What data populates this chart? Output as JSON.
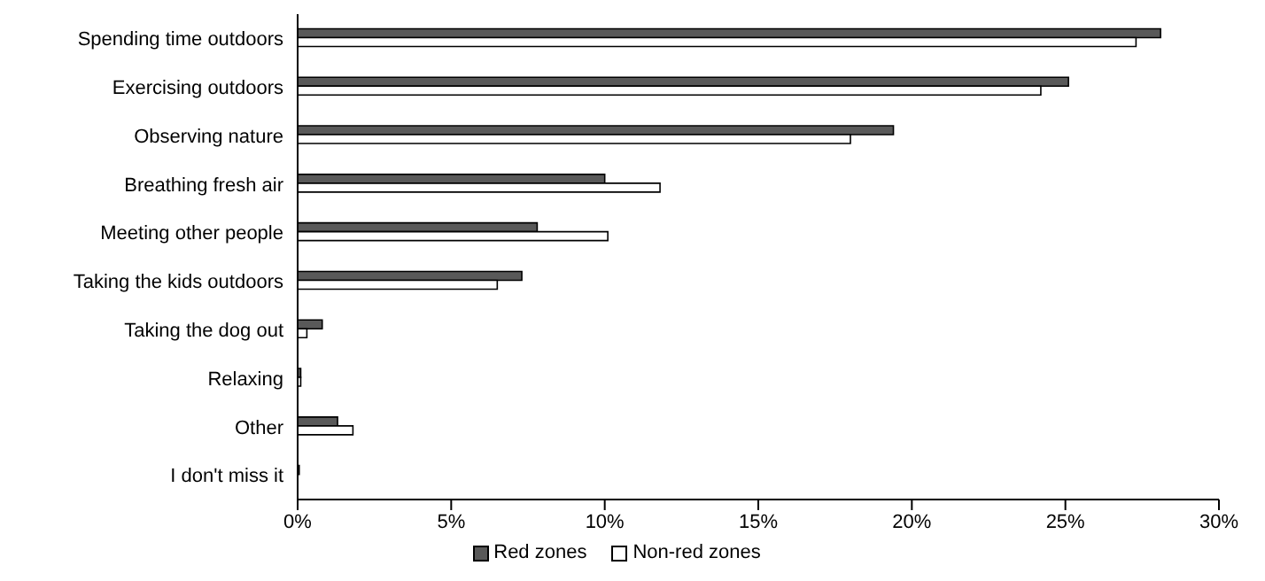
{
  "chart_data": {
    "type": "bar",
    "orientation": "horizontal",
    "categories": [
      "Spending time outdoors",
      "Exercising outdoors",
      "Observing nature",
      "Breathing fresh air",
      "Meeting other people",
      "Taking the kids outdoors",
      "Taking the dog out",
      "Relaxing",
      "Other",
      "I don't miss it"
    ],
    "series": [
      {
        "name": "Red zones",
        "color": "#595959",
        "values": [
          28.1,
          25.1,
          19.4,
          10.0,
          7.8,
          7.3,
          0.8,
          0.1,
          1.3,
          0.05
        ]
      },
      {
        "name": "Non-red zones",
        "color": "#ffffff",
        "values": [
          27.3,
          24.2,
          18.0,
          11.8,
          10.1,
          6.5,
          0.3,
          0.1,
          1.8,
          null
        ]
      }
    ],
    "xlim": [
      0,
      30
    ],
    "xticks": [
      {
        "value": 0,
        "label": "0%"
      },
      {
        "value": 5,
        "label": "5%"
      },
      {
        "value": 10,
        "label": "10%"
      },
      {
        "value": 15,
        "label": "15%"
      },
      {
        "value": 20,
        "label": "20%"
      },
      {
        "value": 25,
        "label": "25%"
      },
      {
        "value": 30,
        "label": "30%"
      }
    ],
    "grid": false,
    "legend": "bottom"
  }
}
